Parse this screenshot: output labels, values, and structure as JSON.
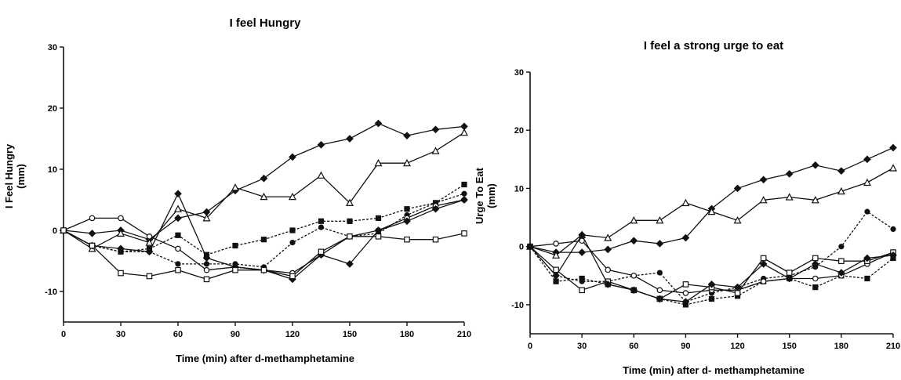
{
  "chart_data": [
    {
      "type": "line",
      "title": "I feel Hungry",
      "xlabel": "Time (min) after d-methamphetamine",
      "ylabel": [
        "I Feel Hungry",
        "(mm)"
      ],
      "xlim": [
        0,
        210
      ],
      "ylim": [
        -15,
        30
      ],
      "xticks": [
        0,
        30,
        60,
        90,
        120,
        150,
        180,
        210
      ],
      "yticks": [
        -10,
        0,
        10,
        20,
        30
      ],
      "x": [
        0,
        15,
        30,
        45,
        60,
        75,
        90,
        105,
        120,
        135,
        150,
        165,
        180,
        195,
        210
      ],
      "series": [
        {
          "marker": "filled-diamond",
          "dash": "solid",
          "values": [
            0,
            -0.5,
            0,
            -1.5,
            2,
            3,
            6.5,
            8.5,
            12,
            14,
            15,
            17.5,
            15.5,
            16.5,
            17
          ]
        },
        {
          "marker": "open-triangle",
          "dash": "solid",
          "values": [
            0,
            -3,
            -0.5,
            -2,
            3.5,
            2,
            7,
            5.5,
            5.5,
            9,
            4.5,
            11,
            11,
            13,
            16
          ]
        },
        {
          "marker": "filled-square",
          "dash": "dotted",
          "values": [
            0,
            -2.5,
            -3.5,
            -3,
            -0.8,
            -4,
            -2.5,
            -1.5,
            0,
            1.5,
            1.5,
            2,
            3.5,
            4.5,
            7.5
          ]
        },
        {
          "marker": "filled-circle",
          "dash": "dotted",
          "values": [
            0,
            -2.5,
            -3.5,
            -3.5,
            -5.5,
            -5.5,
            -5.5,
            -6,
            -2,
            0.5,
            -1,
            -0.5,
            2.5,
            4.5,
            6
          ]
        },
        {
          "marker": "open-circle",
          "dash": "solid",
          "values": [
            0,
            2,
            2,
            -1,
            -3,
            -6.5,
            -6,
            -6.5,
            -7,
            -4,
            -1,
            0,
            2,
            4,
            5
          ]
        },
        {
          "marker": "filled-diamond-2",
          "dash": "solid",
          "values": [
            0,
            -2.5,
            -3,
            -3.5,
            6,
            -4.5,
            -6,
            -6.5,
            -8,
            -4,
            -5.5,
            0,
            1.5,
            3.5,
            5
          ]
        },
        {
          "marker": "open-square",
          "dash": "solid",
          "values": [
            0,
            -2.5,
            -7,
            -7.5,
            -6.5,
            -8,
            -6.5,
            -6.5,
            -7.5,
            -3.5,
            -1,
            -1,
            -1.5,
            -1.5,
            -0.5
          ]
        }
      ]
    },
    {
      "type": "line",
      "title": "I feel a strong urge to eat",
      "xlabel": "Time (min) after d- methamphetamine",
      "ylabel": [
        "Urge To Eat",
        "(mm)"
      ],
      "xlim": [
        0,
        210
      ],
      "ylim": [
        -15,
        30
      ],
      "xticks": [
        0,
        30,
        60,
        90,
        120,
        150,
        180,
        210
      ],
      "yticks": [
        -10,
        0,
        10,
        20,
        30
      ],
      "x": [
        0,
        15,
        30,
        45,
        60,
        75,
        90,
        105,
        120,
        135,
        150,
        165,
        180,
        195,
        210
      ],
      "series": [
        {
          "marker": "filled-diamond",
          "dash": "solid",
          "values": [
            0,
            -1,
            -1,
            -0.5,
            1,
            0.5,
            1.5,
            6.5,
            10,
            11.5,
            12.5,
            14,
            13,
            15,
            17
          ]
        },
        {
          "marker": "open-triangle",
          "dash": "solid",
          "values": [
            0,
            -1.5,
            2,
            1.5,
            4.5,
            4.5,
            7.5,
            6,
            4.5,
            8,
            8.5,
            8,
            9.5,
            11,
            13.5
          ]
        },
        {
          "marker": "filled-circle",
          "dash": "dotted",
          "values": [
            0,
            -5,
            -6,
            -6,
            -5,
            -4.5,
            -9.5,
            -8,
            -7,
            -5.5,
            -5,
            -3.5,
            0,
            6,
            3
          ]
        },
        {
          "marker": "filled-square",
          "dash": "dotted",
          "values": [
            0,
            -6,
            -5.5,
            -6.5,
            -7.5,
            -9,
            -10,
            -9,
            -8.5,
            -6,
            -5.5,
            -7,
            -5,
            -5.5,
            -2
          ]
        },
        {
          "marker": "open-circle",
          "dash": "solid",
          "values": [
            0,
            0.5,
            1,
            -4,
            -5,
            -7.5,
            -8,
            -7.5,
            -7.5,
            -6,
            -5.5,
            -5.5,
            -5,
            -3,
            -1
          ]
        },
        {
          "marker": "open-square",
          "dash": "solid",
          "values": [
            0,
            -4,
            -7.5,
            -6,
            -7.5,
            -9,
            -6.5,
            -7,
            -8,
            -2,
            -4.5,
            -2,
            -2.5,
            -2.5,
            -1
          ]
        },
        {
          "marker": "filled-diamond-2",
          "dash": "solid",
          "values": [
            0,
            -5,
            2,
            -6.5,
            -7.5,
            -9,
            -9.5,
            -6.5,
            -7,
            -3,
            -5.5,
            -3,
            -4.5,
            -2,
            -1.5
          ]
        }
      ]
    }
  ]
}
